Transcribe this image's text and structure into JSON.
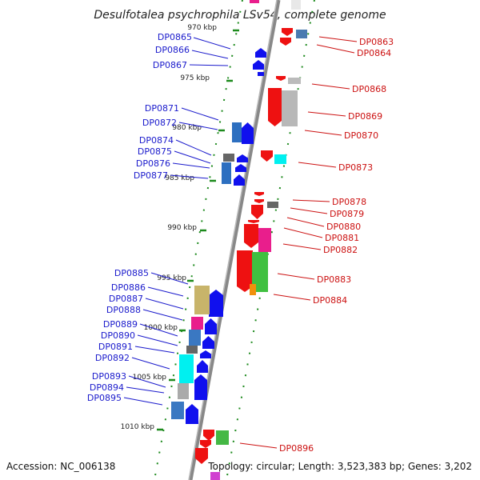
{
  "title": "Desulfotalea psychrophila LSv54, complete genome",
  "accession": "Accession: NC_006138",
  "summary": "Topology: circular; Length: 3,523,383 bp; Genes: 3,202",
  "colors": {
    "minus_strand": "#1a1acc",
    "plus_strand": "#cc1111",
    "ticks": "#1d8a1d",
    "axis": "#888888"
  },
  "kbp_ticks": [
    "970 kbp",
    "975 kbp",
    "980 kbp",
    "985 kbp",
    "990 kbp",
    "995 kbp",
    "1000 kbp",
    "1005 kbp",
    "1010 kbp"
  ],
  "left_genes": [
    "DP0865",
    "DP0866",
    "DP0867",
    "DP0871",
    "DP0872",
    "DP0874",
    "DP0875",
    "DP0876",
    "DP0877",
    "DP0885",
    "DP0886",
    "DP0887",
    "DP0888",
    "DP0889",
    "DP0890",
    "DP0891",
    "DP0892",
    "DP0893",
    "DP0894",
    "DP0895"
  ],
  "right_genes": [
    "DP0863",
    "DP0864",
    "DP0868",
    "DP0869",
    "DP0870",
    "DP0873",
    "DP0878",
    "DP0879",
    "DP0880",
    "DP0881",
    "DP0882",
    "DP0883",
    "DP0884",
    "DP0896"
  ]
}
